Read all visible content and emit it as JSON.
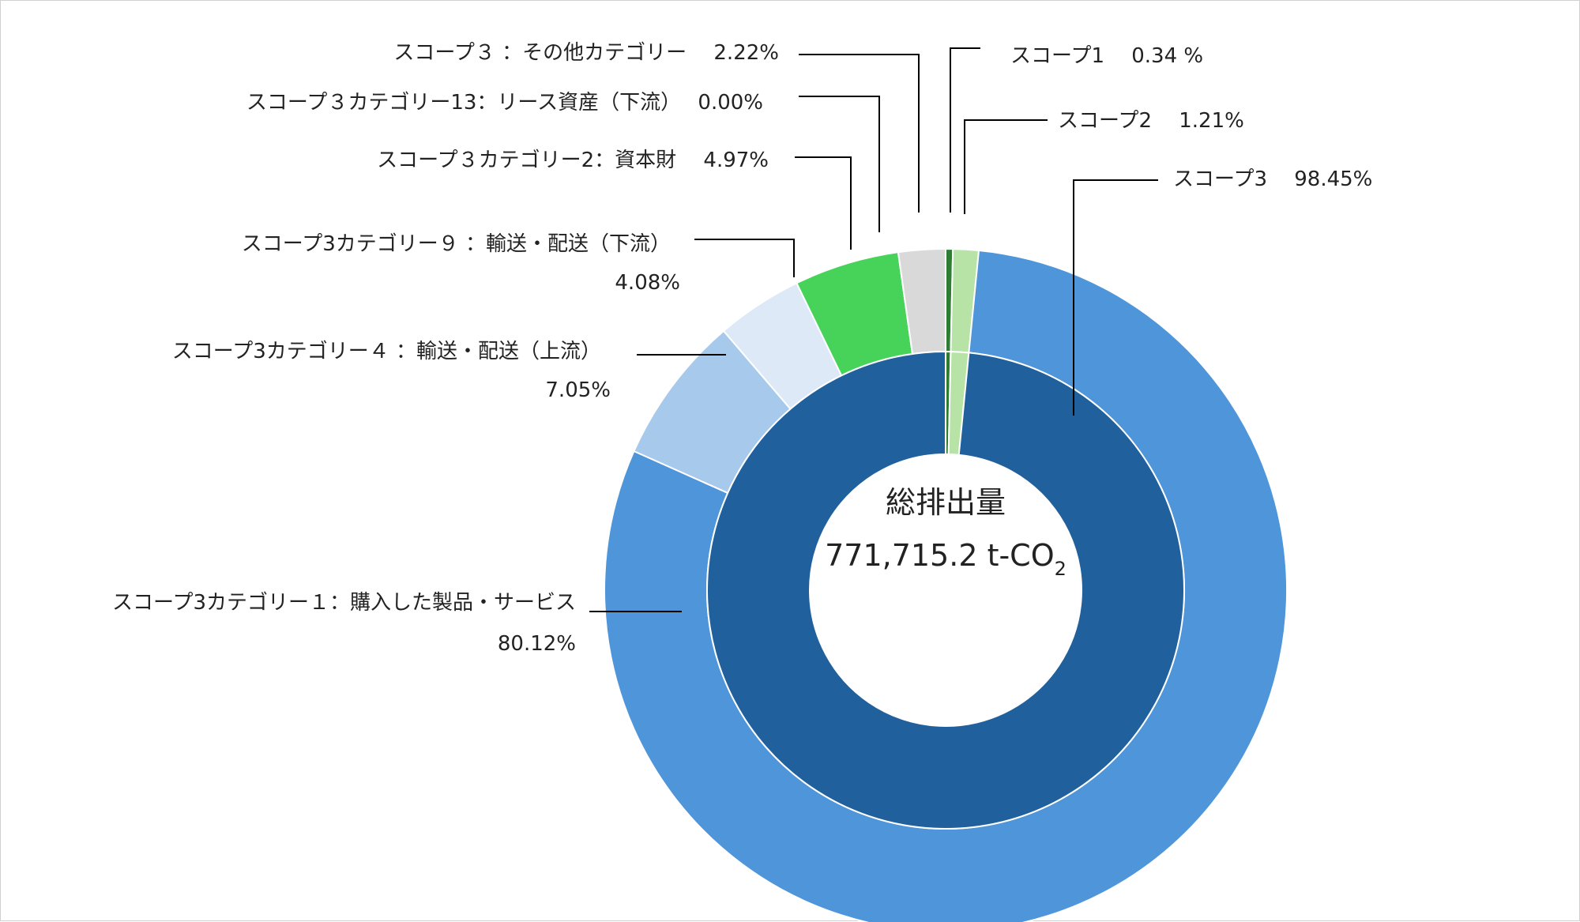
{
  "chart_data": {
    "type": "pie",
    "variant": "nested-donut",
    "center": {
      "title": "総排出量",
      "total": "771,715.2 t-CO",
      "subscript": "2"
    },
    "inner_ring": [
      {
        "name": "スコープ1",
        "value": 0.34,
        "label": "スコープ1　 0.34 %",
        "color": "#2e7d32"
      },
      {
        "name": "スコープ2",
        "value": 1.21,
        "label": "スコープ2　 1.21%",
        "color": "#b7e4a6"
      },
      {
        "name": "スコープ3",
        "value": 98.45,
        "label": "スコープ3　 98.45%",
        "color": "#20609c"
      }
    ],
    "outer_ring": [
      {
        "name": "スコープ1",
        "value": 0.34,
        "color": "#2e7d32"
      },
      {
        "name": "スコープ2",
        "value": 1.21,
        "color": "#b7e4a6"
      },
      {
        "name": "スコープ3カテゴリー１：購入した製品・サービス",
        "value": 80.12,
        "label": [
          "スコープ3カテゴリー１：購入した製品・サービス",
          "80.12%"
        ],
        "color": "#4f95da"
      },
      {
        "name": "スコープ3カテゴリー４：輸送・配送（上流）",
        "value": 7.05,
        "label": [
          "スコープ3カテゴリー４ ：輸送・配送（上流）",
          "7.05%"
        ],
        "color": "#a7c9ec"
      },
      {
        "name": "スコープ3カテゴリー９：輸送・配送（下流）",
        "value": 4.08,
        "label": [
          "スコープ3カテゴリー９ ：輸送・配送（下流）",
          "4.08%"
        ],
        "color": "#dde9f7"
      },
      {
        "name": "スコープ３カテゴリー2：資本財",
        "value": 4.97,
        "label": [
          "スコープ３カテゴリー2：資本財　 4.97%"
        ],
        "color": "#47d35a"
      },
      {
        "name": "スコープ３カテゴリー13：リース資産（下流）",
        "value": 0.0,
        "label": [
          "スコープ３カテゴリー13：リース資産（下流）　 0.00%"
        ],
        "color": "#9aa0a6"
      },
      {
        "name": "スコープ３：その他カテゴリー",
        "value": 2.22,
        "label": [
          "スコープ３ ：その他カテゴリー　 2.22%"
        ],
        "color": "#d9d9d9"
      }
    ]
  }
}
